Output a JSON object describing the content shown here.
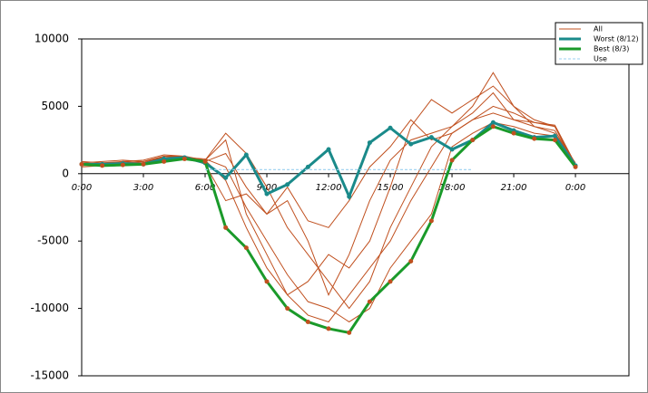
{
  "chart_data": {
    "type": "line",
    "x": [
      0,
      1,
      2,
      3,
      4,
      5,
      6,
      7,
      8,
      9,
      10,
      11,
      12,
      13,
      14,
      15,
      16,
      17,
      18,
      19,
      20,
      21,
      22,
      23,
      24
    ],
    "xlim": [
      0,
      26.6
    ],
    "xticks": [
      {
        "value": 0,
        "label": "0:00"
      },
      {
        "value": 3,
        "label": "3:00"
      },
      {
        "value": 6,
        "label": "6:00"
      },
      {
        "value": 9,
        "label": "9:00"
      },
      {
        "value": 12,
        "label": "12:00"
      },
      {
        "value": 15,
        "label": "15:00"
      },
      {
        "value": 18,
        "label": "18:00"
      },
      {
        "value": 21,
        "label": "21:00"
      },
      {
        "value": 24,
        "label": "0:00"
      }
    ],
    "ylim": [
      -15000,
      10000
    ],
    "yticks": [
      10000,
      5000,
      0,
      -5000,
      -10000,
      -15000
    ],
    "legend": "top-right",
    "series": [
      {
        "name": "All",
        "color": "#c0501f",
        "values": [
          [
            800,
            900,
            1000,
            900,
            1300,
            1300,
            1000,
            2500,
            -3000,
            -6000,
            -9000,
            -10500,
            -11000,
            -9000,
            -7000,
            -5000,
            -2000,
            500,
            3000,
            4000,
            4500,
            4000,
            3500,
            3200,
            700
          ],
          [
            600,
            700,
            700,
            800,
            1200,
            1100,
            1000,
            3000,
            1500,
            -1000,
            -4000,
            -6000,
            -8000,
            -10000,
            -8000,
            -4000,
            -1000,
            2000,
            3500,
            5000,
            7500,
            5000,
            3500,
            3000,
            800
          ],
          [
            900,
            800,
            900,
            1000,
            1400,
            1300,
            700,
            -2000,
            -1500,
            -3000,
            -2000,
            -5000,
            -9000,
            -6000,
            -2000,
            1000,
            2500,
            3000,
            3500,
            4500,
            6000,
            4000,
            3800,
            3500,
            500
          ],
          [
            500,
            600,
            600,
            700,
            1000,
            1200,
            1100,
            500,
            -2500,
            -5000,
            -7500,
            -9500,
            -10000,
            -11000,
            -10000,
            -7000,
            -5000,
            -3000,
            2000,
            3000,
            3800,
            3500,
            3000,
            2800,
            600
          ],
          [
            700,
            800,
            800,
            900,
            1200,
            1300,
            900,
            1500,
            -1000,
            -3000,
            -1000,
            -3500,
            -4000,
            -2000,
            500,
            2000,
            4000,
            2500,
            3000,
            4000,
            5000,
            4500,
            3800,
            3600,
            700
          ],
          [
            800,
            700,
            900,
            800,
            1300,
            1200,
            1000,
            -500,
            -4000,
            -7000,
            -9000,
            -8000,
            -6000,
            -7000,
            -5000,
            -1000,
            3500,
            5500,
            4500,
            5500,
            6500,
            5000,
            4000,
            3500,
            600
          ]
        ]
      },
      {
        "name": "Worst (8/12)",
        "color": "#1a8a8a",
        "values": [
          700,
          700,
          750,
          700,
          1100,
          1200,
          800,
          -300,
          1400,
          -1500,
          -800,
          500,
          1800,
          -1700,
          2300,
          3400,
          2200,
          2700,
          1800,
          2500,
          3800,
          3200,
          2700,
          2800,
          600
        ]
      },
      {
        "name": "Best (8/3)",
        "color": "#1a9a2a",
        "values": [
          700,
          600,
          650,
          700,
          900,
          1100,
          900,
          -4000,
          -5500,
          -8000,
          -10000,
          -11000,
          -11500,
          -11800,
          -9500,
          -8000,
          -6500,
          -3500,
          1000,
          2500,
          3500,
          3000,
          2600,
          2500,
          500
        ]
      },
      {
        "name": "Use",
        "color": "#9ad0f0",
        "values": [
          null,
          null,
          null,
          null,
          null,
          null,
          300,
          300,
          300,
          300,
          300,
          300,
          300,
          300,
          300,
          300,
          300,
          300,
          300,
          300,
          null,
          null,
          null,
          null,
          null
        ]
      }
    ]
  }
}
